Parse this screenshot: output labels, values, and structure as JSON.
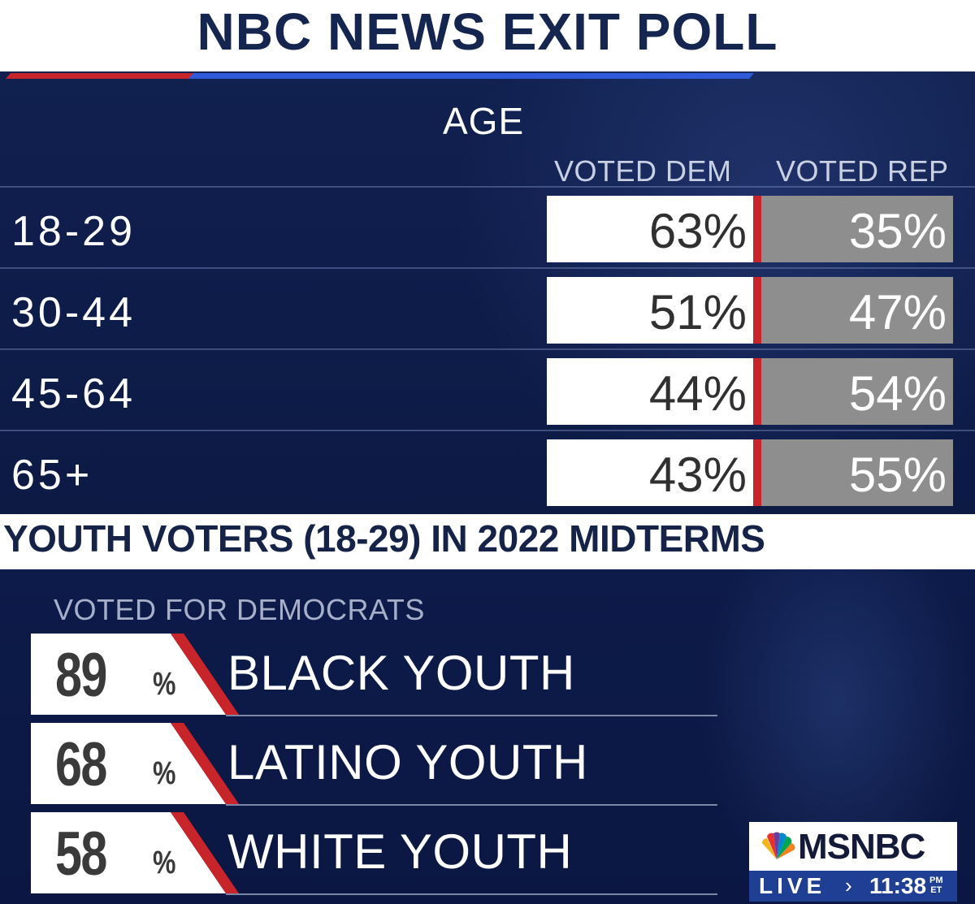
{
  "header": {
    "title": "NBC NEWS EXIT POLL"
  },
  "age_section": {
    "label": "AGE",
    "columns": [
      "VOTED DEM",
      "VOTED REP"
    ]
  },
  "subheader": {
    "title": "YOUTH VOTERS (18-29) IN 2022 MIDTERMS"
  },
  "youth_section": {
    "label": "VOTED FOR DEMOCRATS"
  },
  "broadcast": {
    "network": "MSNBC",
    "live": "LIVE",
    "arrow": "›",
    "time": "11:38",
    "ampm": "PM",
    "tz": "ET"
  },
  "colors": {
    "navy_background": "#0d1a48",
    "dem_box": "#ffffff",
    "rep_box": "#8e8e8e",
    "red_accent": "#c8252b",
    "blue_accent": "#2f5ad9"
  },
  "chart_data": [
    {
      "type": "table",
      "title": "AGE",
      "columns": [
        "VOTED DEM",
        "VOTED REP"
      ],
      "rows": [
        {
          "label": "18-29",
          "dem": "63%",
          "rep": "35%"
        },
        {
          "label": "30-44",
          "dem": "51%",
          "rep": "47%"
        },
        {
          "label": "45-64",
          "dem": "44%",
          "rep": "54%"
        },
        {
          "label": "65+",
          "dem": "43%",
          "rep": "55%"
        }
      ]
    },
    {
      "type": "table",
      "title": "VOTED FOR DEMOCRATS",
      "rows": [
        {
          "label": "BLACK YOUTH",
          "value": "89",
          "unit": "%"
        },
        {
          "label": "LATINO YOUTH",
          "value": "68",
          "unit": "%"
        },
        {
          "label": "WHITE YOUTH",
          "value": "58",
          "unit": "%"
        }
      ]
    }
  ]
}
